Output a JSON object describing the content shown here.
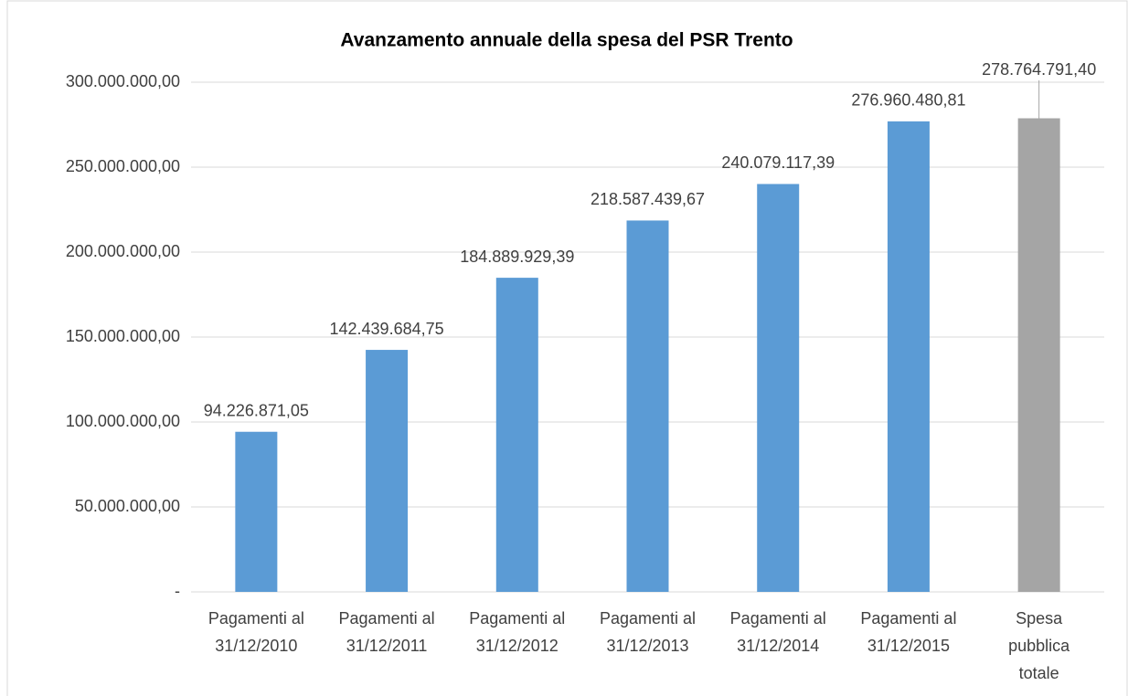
{
  "chart_data": {
    "type": "bar",
    "title": "Avanzamento annuale della spesa del PSR Trento",
    "categories": [
      [
        "Pagamenti al",
        "31/12/2010"
      ],
      [
        "Pagamenti al",
        "31/12/2011"
      ],
      [
        "Pagamenti al",
        "31/12/2012"
      ],
      [
        "Pagamenti al",
        "31/12/2013"
      ],
      [
        "Pagamenti al",
        "31/12/2014"
      ],
      [
        "Pagamenti al",
        "31/12/2015"
      ],
      [
        "Spesa",
        "pubblica",
        "totale"
      ]
    ],
    "values": [
      94226871.05,
      142439684.75,
      184889929.39,
      218587439.67,
      240079117.39,
      276960480.81,
      278764791.4
    ],
    "value_labels": [
      "94.226.871,05",
      "142.439.684,75",
      "184.889.929,39",
      "218.587.439,67",
      "240.079.117,39",
      "276.960.480,81",
      "278.764.791,40"
    ],
    "colors": [
      "#5b9bd5",
      "#5b9bd5",
      "#5b9bd5",
      "#5b9bd5",
      "#5b9bd5",
      "#5b9bd5",
      "#a5a5a5"
    ],
    "ylim": [
      0,
      300000000
    ],
    "yticks": [
      {
        "value": 0,
        "label": "-"
      },
      {
        "value": 50000000,
        "label": "50.000.000,00"
      },
      {
        "value": 100000000,
        "label": "100.000.000,00"
      },
      {
        "value": 150000000,
        "label": "150.000.000,00"
      },
      {
        "value": 200000000,
        "label": "200.000.000,00"
      },
      {
        "value": 250000000,
        "label": "250.000.000,00"
      },
      {
        "value": 300000000,
        "label": "300.000.000,00"
      }
    ],
    "grid": true
  }
}
